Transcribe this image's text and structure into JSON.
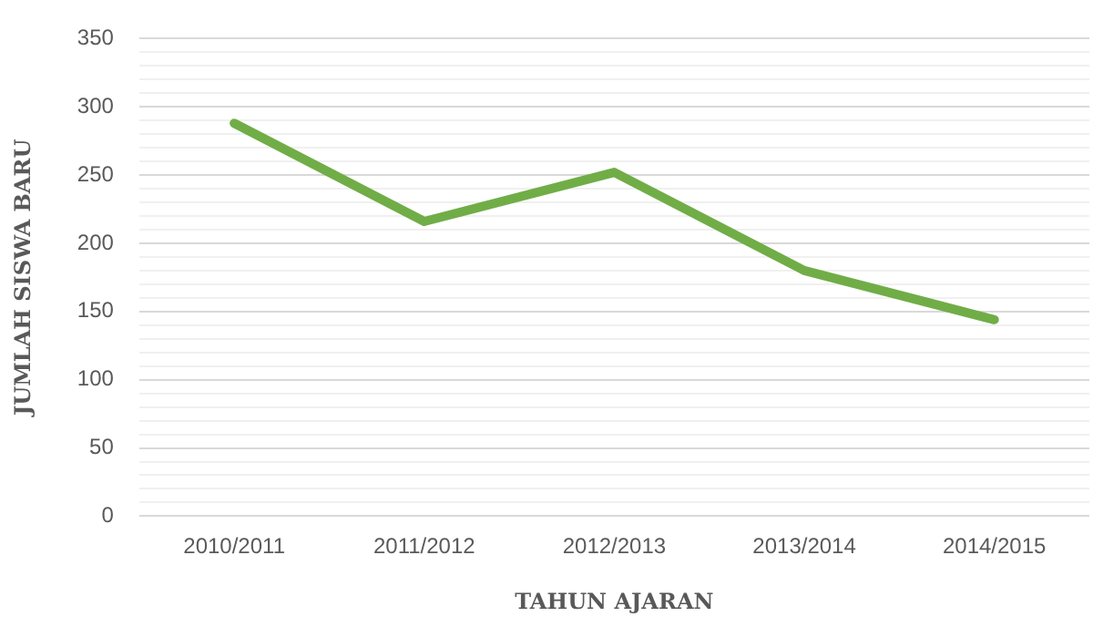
{
  "chart_data": {
    "type": "line",
    "xlabel": "TAHUN AJARAN",
    "ylabel": "JUMLAH SISWA BARU",
    "categories": [
      "2010/2011",
      "2011/2012",
      "2012/2013",
      "2013/2014",
      "2014/2015"
    ],
    "series": [
      {
        "color": "#70ad47",
        "values": [
          288,
          216,
          252,
          180,
          144
        ]
      }
    ],
    "ylim": [
      0,
      350
    ],
    "yticks": [
      0,
      {
        "value": 10,
        "label": null
      },
      {
        "value": 20,
        "label": null
      },
      {
        "value": 30,
        "label": null
      },
      {
        "value": 40,
        "label": null
      },
      50,
      {
        "value": 60,
        "label": null
      },
      {
        "value": 70,
        "label": null
      },
      {
        "value": 80,
        "label": null
      },
      {
        "value": 90,
        "label": null
      },
      100,
      {
        "value": 110,
        "label": null
      },
      {
        "value": 120,
        "label": null
      },
      {
        "value": 130,
        "label": null
      },
      {
        "value": 140,
        "label": null
      },
      150,
      {
        "value": 160,
        "label": null
      },
      {
        "value": 170,
        "label": null
      },
      {
        "value": 180,
        "label": null
      },
      {
        "value": 190,
        "label": null
      },
      200,
      {
        "value": 210,
        "label": null
      },
      {
        "value": 220,
        "label": null
      },
      {
        "value": 230,
        "label": null
      },
      {
        "value": 240,
        "label": null
      },
      250,
      {
        "value": 260,
        "label": null
      },
      {
        "value": 270,
        "label": null
      },
      {
        "value": 280,
        "label": null
      },
      {
        "value": 290,
        "label": null
      },
      300,
      {
        "value": 310,
        "label": null
      },
      {
        "value": 320,
        "label": null
      },
      {
        "value": 330,
        "label": null
      },
      {
        "value": 340,
        "label": null
      },
      350
    ],
    "grid": "y",
    "legend": false,
    "marker": "none",
    "line_style": "solid"
  }
}
